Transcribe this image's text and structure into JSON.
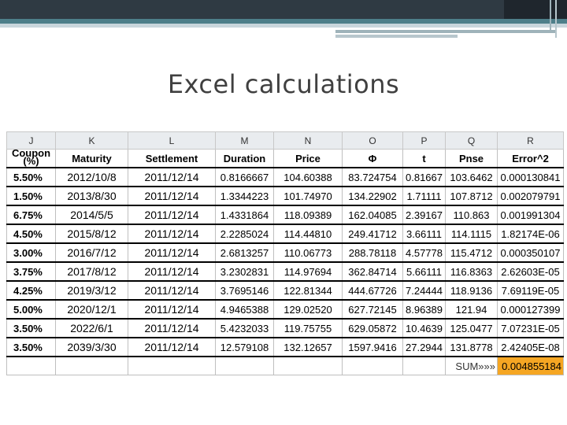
{
  "title": "Excel calculations",
  "colors": {
    "top_bar": "#2f3a43",
    "accent_strip": "#4e7f8a",
    "sum_highlight": "#f5a623"
  },
  "columns": [
    "J",
    "K",
    "L",
    "M",
    "N",
    "O",
    "P",
    "Q",
    "R"
  ],
  "headers": {
    "coupon_line1": "Coupon",
    "coupon_line2": "(%)",
    "maturity": "Maturity",
    "settlement": "Settlement",
    "duration": "Duration",
    "price": "Price",
    "phi": "Φ",
    "t": "t",
    "pnse": "Pnse",
    "error": "Error^2"
  },
  "rows": [
    {
      "coupon": "5.50%",
      "maturity": "2012/10/8",
      "settlement": "2011/12/14",
      "duration": "0.8166667",
      "price": "104.60388",
      "phi": "83.724754",
      "t": "0.81667",
      "pnse": "103.6462",
      "error": "0.000130841"
    },
    {
      "coupon": "1.50%",
      "maturity": "2013/8/30",
      "settlement": "2011/12/14",
      "duration": "1.3344223",
      "price": "101.74970",
      "phi": "134.22902",
      "t": "1.71111",
      "pnse": "107.8712",
      "error": "0.002079791"
    },
    {
      "coupon": "6.75%",
      "maturity": "2014/5/5",
      "settlement": "2011/12/14",
      "duration": "1.4331864",
      "price": "118.09389",
      "phi": "162.04085",
      "t": "2.39167",
      "pnse": "110.863",
      "error": "0.001991304"
    },
    {
      "coupon": "4.50%",
      "maturity": "2015/8/12",
      "settlement": "2011/12/14",
      "duration": "2.2285024",
      "price": "114.44810",
      "phi": "249.41712",
      "t": "3.66111",
      "pnse": "114.1115",
      "error": "1.82174E-06"
    },
    {
      "coupon": "3.00%",
      "maturity": "2016/7/12",
      "settlement": "2011/12/14",
      "duration": "2.6813257",
      "price": "110.06773",
      "phi": "288.78118",
      "t": "4.57778",
      "pnse": "115.4712",
      "error": "0.000350107"
    },
    {
      "coupon": "3.75%",
      "maturity": "2017/8/12",
      "settlement": "2011/12/14",
      "duration": "3.2302831",
      "price": "114.97694",
      "phi": "362.84714",
      "t": "5.66111",
      "pnse": "116.8363",
      "error": "2.62603E-05"
    },
    {
      "coupon": "4.25%",
      "maturity": "2019/3/12",
      "settlement": "2011/12/14",
      "duration": "3.7695146",
      "price": "122.81344",
      "phi": "444.67726",
      "t": "7.24444",
      "pnse": "118.9136",
      "error": "7.69119E-05"
    },
    {
      "coupon": "5.00%",
      "maturity": "2020/12/1",
      "settlement": "2011/12/14",
      "duration": "4.9465388",
      "price": "129.02520",
      "phi": "627.72145",
      "t": "8.96389",
      "pnse": "121.94",
      "error": "0.000127399"
    },
    {
      "coupon": "3.50%",
      "maturity": "2022/6/1",
      "settlement": "2011/12/14",
      "duration": "5.4232033",
      "price": "119.75755",
      "phi": "629.05872",
      "t": "10.4639",
      "pnse": "125.0477",
      "error": "7.07231E-05"
    },
    {
      "coupon": "3.50%",
      "maturity": "2039/3/30",
      "settlement": "2011/12/14",
      "duration": "12.579108",
      "price": "132.12657",
      "phi": "1597.9416",
      "t": "27.2944",
      "pnse": "131.8778",
      "error": "2.42405E-08"
    }
  ],
  "sum": {
    "label": "SUM»»»",
    "value": "0.004855184"
  }
}
